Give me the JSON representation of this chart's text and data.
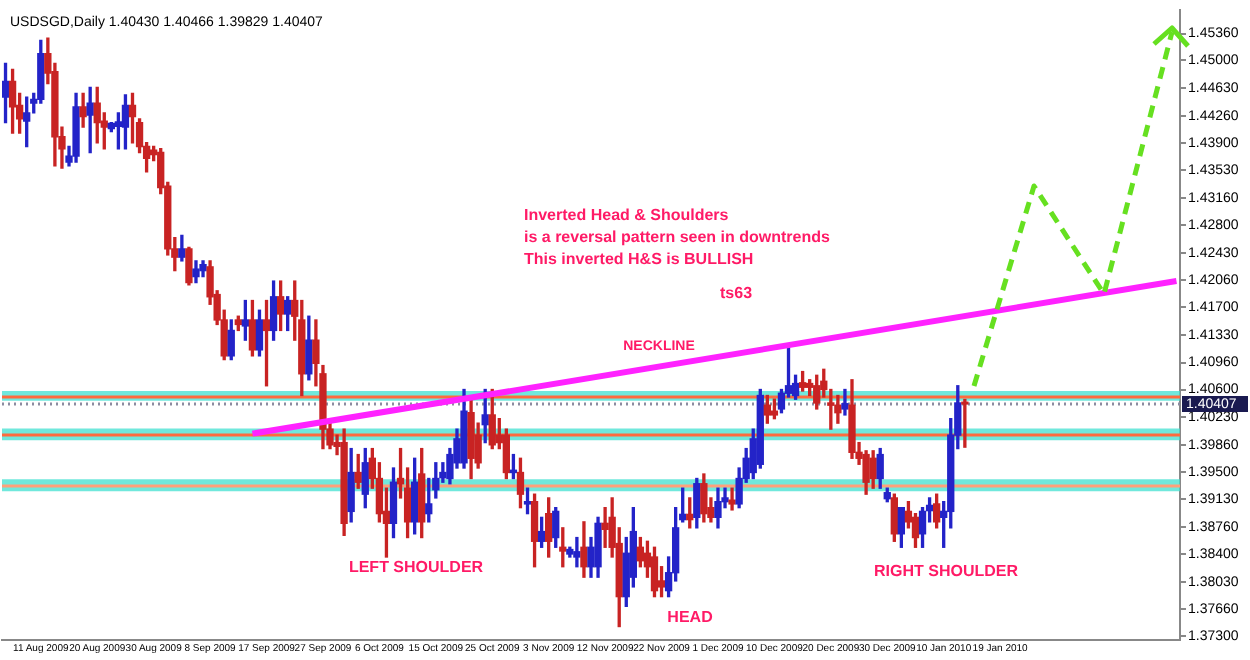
{
  "chart_data": {
    "type": "candlestick",
    "title": "USDSGD,Daily 1.40430 1.40466 1.39829 1.40407",
    "categories": [
      null,
      null,
      null,
      null,
      null,
      "11 Aug 2009",
      null,
      null,
      null,
      null,
      null,
      null,
      null,
      "20 Aug 2009",
      null,
      null,
      null,
      null,
      null,
      null,
      null,
      "30 Aug 2009",
      null,
      null,
      null,
      null,
      null,
      null,
      null,
      "8 Sep 2009",
      null,
      null,
      null,
      null,
      null,
      null,
      null,
      "17 Sep 2009",
      null,
      null,
      null,
      null,
      null,
      null,
      null,
      "27 Sep 2009",
      null,
      null,
      null,
      null,
      null,
      null,
      null,
      "6 Oct 2009",
      null,
      null,
      null,
      null,
      null,
      null,
      null,
      "15 Oct 2009",
      null,
      null,
      null,
      null,
      null,
      null,
      null,
      "25 Oct 2009",
      null,
      null,
      null,
      null,
      null,
      null,
      null,
      "3 Nov 2009",
      null,
      null,
      null,
      null,
      null,
      null,
      null,
      "12 Nov 2009",
      null,
      null,
      null,
      null,
      null,
      null,
      null,
      "22 Nov 2009",
      null,
      null,
      null,
      null,
      null,
      null,
      null,
      "1 Dec 2009",
      null,
      null,
      null,
      null,
      null,
      null,
      null,
      "10 Dec 2009",
      null,
      null,
      null,
      null,
      null,
      null,
      null,
      "20 Dec 2009",
      null,
      null,
      null,
      null,
      null,
      null,
      null,
      "30 Dec 2009",
      null,
      null,
      null,
      null,
      null,
      null,
      null,
      "10 Jan 2010",
      null,
      null,
      null,
      null,
      null,
      null,
      null,
      "19 Jan 2010",
      null,
      null,
      null,
      null,
      null,
      null,
      null,
      null,
      null,
      null,
      null,
      null,
      null,
      null,
      null,
      null,
      null,
      null,
      null,
      null,
      null,
      null,
      null,
      null,
      null
    ],
    "ohlc": [
      [
        1.4451,
        1.4496,
        1.4417,
        1.4472
      ],
      [
        1.4472,
        1.4488,
        1.4403,
        1.4438
      ],
      [
        1.444,
        1.4456,
        1.4403,
        1.4422
      ],
      [
        1.4419,
        1.4451,
        1.4385,
        1.443
      ],
      [
        1.4443,
        1.4456,
        1.443,
        1.4448
      ],
      [
        1.4448,
        1.4527,
        1.4443,
        1.4509
      ],
      [
        1.4509,
        1.453,
        1.4469,
        1.4483
      ],
      [
        1.4485,
        1.4496,
        1.4359,
        1.4398
      ],
      [
        1.4398,
        1.4411,
        1.4356,
        1.4382
      ],
      [
        1.4364,
        1.4385,
        1.4359,
        1.4372
      ],
      [
        1.4372,
        1.4456,
        1.4364,
        1.4438
      ],
      [
        1.4438,
        1.4456,
        1.4411,
        1.4425
      ],
      [
        1.4427,
        1.4464,
        1.4377,
        1.4443
      ],
      [
        1.4443,
        1.4464,
        1.439,
        1.4417
      ],
      [
        1.4419,
        1.443,
        1.4382,
        1.4411
      ],
      [
        1.4409,
        1.4417,
        1.4405,
        1.4416
      ],
      [
        1.4412,
        1.443,
        1.4382,
        1.4418
      ],
      [
        1.4411,
        1.4454,
        1.4382,
        1.444
      ],
      [
        1.444,
        1.4456,
        1.439,
        1.4425
      ],
      [
        1.4417,
        1.4422,
        1.4377,
        1.4385
      ],
      [
        1.4385,
        1.439,
        1.4351,
        1.4369
      ],
      [
        1.438,
        1.4385,
        1.4366,
        1.4374
      ],
      [
        1.4377,
        1.4382,
        1.4322,
        1.433
      ],
      [
        1.4332,
        1.4337,
        1.424,
        1.4248
      ],
      [
        1.4248,
        1.4263,
        1.4219,
        1.4237
      ],
      [
        1.4237,
        1.4266,
        1.4232,
        1.4248
      ],
      [
        1.4248,
        1.425,
        1.42,
        1.4203
      ],
      [
        1.4211,
        1.4232,
        1.4203,
        1.4221
      ],
      [
        1.4219,
        1.4232,
        1.4211,
        1.4227
      ],
      [
        1.4224,
        1.4232,
        1.4174,
        1.4184
      ],
      [
        1.4187,
        1.4192,
        1.4147,
        1.4153
      ],
      [
        1.4153,
        1.4166,
        1.41,
        1.4105
      ],
      [
        1.4105,
        1.4153,
        1.41,
        1.4139
      ],
      [
        1.4153,
        1.4158,
        1.4139,
        1.4147
      ],
      [
        1.4145,
        1.4179,
        1.4126,
        1.4153
      ],
      [
        1.4153,
        1.4179,
        1.4105,
        1.4113
      ],
      [
        1.4113,
        1.4166,
        1.4105,
        1.4153
      ],
      [
        1.4153,
        1.4179,
        1.4065,
        1.4139
      ],
      [
        1.4139,
        1.4205,
        1.4126,
        1.4184
      ],
      [
        1.4184,
        1.4205,
        1.4139,
        1.4161
      ],
      [
        1.4161,
        1.4184,
        1.4139,
        1.4179
      ],
      [
        1.4179,
        1.4205,
        1.4126,
        1.4158
      ],
      [
        1.4153,
        1.4179,
        1.4052,
        1.4081
      ],
      [
        1.4081,
        1.4158,
        1.4073,
        1.4126
      ],
      [
        1.4126,
        1.4153,
        1.4065,
        1.4095
      ],
      [
        1.4081,
        1.4092,
        1.3981,
        1.4007
      ],
      [
        1.4007,
        1.4015,
        1.3981,
        1.3986
      ],
      [
        1.3989,
        1.3999,
        1.3973,
        1.3984
      ],
      [
        1.3989,
        1.4007,
        1.3865,
        1.3881
      ],
      [
        1.3897,
        1.3981,
        1.3883,
        1.3949
      ],
      [
        1.3949,
        1.3973,
        1.3928,
        1.3936
      ],
      [
        1.392,
        1.3981,
        1.3902,
        1.3962
      ],
      [
        1.3968,
        1.3981,
        1.3928,
        1.3941
      ],
      [
        1.3941,
        1.3962,
        1.3883,
        1.3894
      ],
      [
        1.3897,
        1.3928,
        1.3836,
        1.3881
      ],
      [
        1.3881,
        1.3955,
        1.3862,
        1.3936
      ],
      [
        1.3941,
        1.3981,
        1.3915,
        1.3934
      ],
      [
        1.3928,
        1.3955,
        1.3862,
        1.3883
      ],
      [
        1.3883,
        1.3968,
        1.3867,
        1.3936
      ],
      [
        1.3947,
        1.3981,
        1.3862,
        1.3883
      ],
      [
        1.3894,
        1.3941,
        1.3883,
        1.3907
      ],
      [
        1.3926,
        1.3962,
        1.3915,
        1.3941
      ],
      [
        1.3942,
        1.3962,
        1.3936,
        1.3949
      ],
      [
        1.3941,
        1.3981,
        1.3934,
        1.3973
      ],
      [
        1.3962,
        1.4007,
        1.3955,
        1.3994
      ],
      [
        1.3962,
        1.406,
        1.3955,
        1.4031
      ],
      [
        1.4029,
        1.4047,
        1.3941,
        1.3968
      ],
      [
        1.3999,
        1.4015,
        1.3955,
        1.3962
      ],
      [
        1.4013,
        1.406,
        1.3989,
        1.4026
      ],
      [
        1.4026,
        1.406,
        1.3981,
        1.3986
      ],
      [
        1.3999,
        1.4021,
        1.3981,
        1.3989
      ],
      [
        1.3999,
        1.4007,
        1.3941,
        1.3949
      ],
      [
        1.3949,
        1.3973,
        1.3941,
        1.3952
      ],
      [
        1.3949,
        1.3968,
        1.3902,
        1.392
      ],
      [
        1.3907,
        1.3928,
        1.3894,
        1.391
      ],
      [
        1.391,
        1.392,
        1.3823,
        1.3857
      ],
      [
        1.3857,
        1.3889,
        1.3849,
        1.387
      ],
      [
        1.3894,
        1.3915,
        1.3836,
        1.3857
      ],
      [
        1.3862,
        1.3902,
        1.3849,
        1.3897
      ],
      [
        1.3849,
        1.3875,
        1.3823,
        1.3844
      ],
      [
        1.384,
        1.3849,
        1.3836,
        1.3846
      ],
      [
        1.3836,
        1.3862,
        1.3823,
        1.3843
      ],
      [
        1.3849,
        1.3883,
        1.3809,
        1.3823
      ],
      [
        1.3823,
        1.3862,
        1.3809,
        1.3849
      ],
      [
        1.3823,
        1.3889,
        1.3809,
        1.3881
      ],
      [
        1.3881,
        1.3902,
        1.3849,
        1.3873
      ],
      [
        1.3889,
        1.3915,
        1.3836,
        1.3849
      ],
      [
        1.3854,
        1.3875,
        1.3743,
        1.3783
      ],
      [
        1.3783,
        1.3862,
        1.377,
        1.3841
      ],
      [
        1.3809,
        1.3902,
        1.3796,
        1.387
      ],
      [
        1.3849,
        1.3862,
        1.3823,
        1.3831
      ],
      [
        1.3841,
        1.3857,
        1.3809,
        1.3823
      ],
      [
        1.3836,
        1.3849,
        1.3783,
        1.3791
      ],
      [
        1.3804,
        1.3823,
        1.3783,
        1.3796
      ],
      [
        1.3791,
        1.3836,
        1.3783,
        1.3815
      ],
      [
        1.3815,
        1.3902,
        1.3804,
        1.3875
      ],
      [
        1.3886,
        1.3928,
        1.3883,
        1.3893
      ],
      [
        1.3893,
        1.3915,
        1.3875,
        1.3886
      ],
      [
        1.3889,
        1.3941,
        1.3875,
        1.3934
      ],
      [
        1.3934,
        1.3947,
        1.3883,
        1.3894
      ],
      [
        1.3902,
        1.3915,
        1.3883,
        1.3889
      ],
      [
        1.3889,
        1.3928,
        1.3875,
        1.391
      ],
      [
        1.391,
        1.3928,
        1.3902,
        1.3915
      ],
      [
        1.3912,
        1.3928,
        1.3899,
        1.3907
      ],
      [
        1.3907,
        1.3955,
        1.3902,
        1.3941
      ],
      [
        1.3941,
        1.3981,
        1.3936,
        1.3968
      ],
      [
        1.3949,
        1.4007,
        1.3941,
        1.3994
      ],
      [
        1.396,
        1.406,
        1.3955,
        1.4052
      ],
      [
        1.4039,
        1.4052,
        1.4015,
        1.4026
      ],
      [
        1.4031,
        1.4047,
        1.4021,
        1.4026
      ],
      [
        1.4034,
        1.406,
        1.4029,
        1.4055
      ],
      [
        1.4055,
        1.4121,
        1.405,
        1.4065
      ],
      [
        1.4052,
        1.4079,
        1.4047,
        1.4068
      ],
      [
        1.4069,
        1.4084,
        1.4058,
        1.4063
      ],
      [
        1.4068,
        1.4073,
        1.4052,
        1.4063
      ],
      [
        1.4065,
        1.4079,
        1.4034,
        1.4042
      ],
      [
        1.4071,
        1.4087,
        1.405,
        1.406
      ],
      [
        1.4042,
        1.406,
        1.4007,
        1.4039
      ],
      [
        1.4039,
        1.4052,
        1.4015,
        1.4029
      ],
      [
        1.4034,
        1.406,
        1.4026,
        1.4041
      ],
      [
        1.4039,
        1.4073,
        1.3968,
        1.3976
      ],
      [
        1.3976,
        1.3989,
        1.396,
        1.3968
      ],
      [
        1.3973,
        1.3978,
        1.392,
        1.3936
      ],
      [
        1.3968,
        1.3978,
        1.3928,
        1.3941
      ],
      [
        1.3941,
        1.3981,
        1.3928,
        1.3973
      ],
      [
        1.3914,
        1.3928,
        1.391,
        1.3922
      ],
      [
        1.3915,
        1.392,
        1.3857,
        1.3867
      ],
      [
        1.3867,
        1.3902,
        1.3849,
        1.3902
      ],
      [
        1.3897,
        1.391,
        1.3875,
        1.3883
      ],
      [
        1.3889,
        1.3894,
        1.3849,
        1.3862
      ],
      [
        1.3867,
        1.3902,
        1.3849,
        1.3897
      ],
      [
        1.3898,
        1.3915,
        1.3883,
        1.3905
      ],
      [
        1.3907,
        1.392,
        1.3875,
        1.3883
      ],
      [
        1.3889,
        1.391,
        1.3849,
        1.3897
      ],
      [
        1.3897,
        1.4021,
        1.3875,
        1.3999
      ],
      [
        1.3999,
        1.4065,
        1.3981,
        1.4042
      ],
      [
        1.4043,
        1.40466,
        1.39829,
        1.40407
      ],
      null,
      null,
      null,
      null,
      null,
      null,
      null,
      null,
      null,
      null,
      null,
      null,
      null,
      null,
      null,
      null,
      null,
      null,
      null,
      null,
      null,
      null,
      null,
      null,
      null,
      null,
      null,
      null,
      null,
      null
    ],
    "colors": [
      "#2323c8",
      "#c82323",
      "#c82323",
      "#2323c8",
      "#2323c8",
      "#2323c8",
      "#c82323",
      "#c82323",
      "#c82323",
      "#2323c8",
      "#2323c8",
      "#c82323",
      "#2323c8",
      "#c82323",
      "#c82323",
      "#2323c8",
      "#2323c8",
      "#2323c8",
      "#c82323",
      "#c82323",
      "#c82323",
      "#c82323",
      "#c82323",
      "#c82323",
      "#c82323",
      "#2323c8",
      "#c82323",
      "#2323c8",
      "#2323c8",
      "#c82323",
      "#c82323",
      "#c82323",
      "#2323c8",
      "#c82323",
      "#2323c8",
      "#c82323",
      "#2323c8",
      "#c82323",
      "#2323c8",
      "#c82323",
      "#2323c8",
      "#c82323",
      "#c82323",
      "#2323c8",
      "#c82323",
      "#c82323",
      "#c82323",
      "#c82323",
      "#c82323",
      "#2323c8",
      "#c82323",
      "#2323c8",
      "#c82323",
      "#c82323",
      "#c82323",
      "#2323c8",
      "#c82323",
      "#c82323",
      "#2323c8",
      "#c82323",
      "#2323c8",
      "#2323c8",
      "#2323c8",
      "#2323c8",
      "#2323c8",
      "#2323c8",
      "#c82323",
      "#c82323",
      "#2323c8",
      "#c82323",
      "#c82323",
      "#c82323",
      "#2323c8",
      "#c82323",
      "#2323c8",
      "#c82323",
      "#2323c8",
      "#c82323",
      "#2323c8",
      "#c82323",
      "#2323c8",
      "#2323c8",
      "#c82323",
      "#2323c8",
      "#2323c8",
      "#c82323",
      "#c82323",
      "#c82323",
      "#2323c8",
      "#2323c8",
      "#c82323",
      "#c82323",
      "#c82323",
      "#c82323",
      "#2323c8",
      "#2323c8",
      "#2323c8",
      "#c82323",
      "#2323c8",
      "#c82323",
      "#c82323",
      "#2323c8",
      "#2323c8",
      "#c82323",
      "#2323c8",
      "#2323c8",
      "#2323c8",
      "#2323c8",
      "#c82323",
      "#c82323",
      "#2323c8",
      "#2323c8",
      "#2323c8",
      "#c82323",
      "#c82323",
      "#c82323",
      "#c82323",
      "#c82323",
      "#c82323",
      "#2323c8",
      "#c82323",
      "#c82323",
      "#c82323",
      "#c82323",
      "#2323c8",
      "#2323c8",
      "#c82323",
      "#2323c8",
      "#c82323",
      "#c82323",
      "#2323c8",
      "#2323c8",
      "#c82323",
      "#2323c8",
      "#2323c8",
      "#2323c8",
      "#c82323",
      null,
      null,
      null,
      null,
      null,
      null,
      null,
      null,
      null,
      null,
      null,
      null,
      null,
      null,
      null,
      null,
      null,
      null,
      null,
      null,
      null,
      null,
      null,
      null,
      null,
      null,
      null,
      null,
      null,
      null
    ],
    "series": [
      {
        "type": "line",
        "name": "NECKLINE",
        "color": "#ff22ff",
        "values": [
          null,
          null,
          null,
          null,
          null,
          null,
          null,
          null,
          null,
          null,
          null,
          null,
          null,
          null,
          null,
          null,
          null,
          null,
          null,
          null,
          null,
          null,
          null,
          null,
          null,
          null,
          null,
          null,
          null,
          null,
          null,
          null,
          null,
          null,
          null,
          1.4001,
          null,
          null,
          null,
          null,
          null,
          null,
          null,
          null,
          null,
          null,
          null,
          null,
          null,
          null,
          null,
          null,
          null,
          null,
          null,
          null,
          null,
          null,
          null,
          null,
          null,
          null,
          null,
          null,
          null,
          null,
          null,
          null,
          null,
          null,
          null,
          null,
          null,
          null,
          null,
          null,
          null,
          null,
          null,
          null,
          null,
          null,
          null,
          null,
          null,
          null,
          null,
          null,
          null,
          null,
          null,
          null,
          null,
          null,
          null,
          null,
          null,
          null,
          null,
          null,
          null,
          null,
          null,
          null,
          null,
          null,
          null,
          null,
          null,
          null,
          null,
          null,
          null,
          null,
          null,
          null,
          null,
          null,
          null,
          null,
          null,
          null,
          null,
          null,
          null,
          null,
          null,
          null,
          null,
          null,
          null,
          null,
          null,
          null,
          null,
          null,
          null,
          null,
          null,
          null,
          null,
          null,
          null,
          null,
          null,
          null,
          null,
          null,
          null,
          null,
          null,
          null,
          null,
          null,
          null,
          null,
          null,
          null,
          null,
          null,
          null,
          null,
          null,
          null,
          null,
          null,
          1.4205
        ]
      }
    ],
    "ylim": [
      1.3725,
      1.4567
    ],
    "yticks": [
      {
        "value": 1.373,
        "label": "1.37300"
      },
      {
        "value": 1.3766,
        "label": "1.37660"
      },
      {
        "value": 1.3803,
        "label": "1.38030"
      },
      {
        "value": 1.384,
        "label": "1.38400"
      },
      {
        "value": 1.3876,
        "label": "1.38760"
      },
      {
        "value": 1.3913,
        "label": "1.39130"
      },
      {
        "value": 1.395,
        "label": "1.39500"
      },
      {
        "value": 1.3986,
        "label": "1.39860"
      },
      {
        "value": 1.4023,
        "label": "1.40230"
      },
      {
        "value": 1.406,
        "label": "1.40600"
      },
      {
        "value": 1.4096,
        "label": "1.40960"
      },
      {
        "value": 1.4133,
        "label": "1.41330"
      },
      {
        "value": 1.417,
        "label": "1.41700"
      },
      {
        "value": 1.4206,
        "label": "1.42060"
      },
      {
        "value": 1.4243,
        "label": "1.42430"
      },
      {
        "value": 1.428,
        "label": "1.42800"
      },
      {
        "value": 1.4316,
        "label": "1.43160"
      },
      {
        "value": 1.4353,
        "label": "1.43530"
      },
      {
        "value": 1.439,
        "label": "1.43900"
      },
      {
        "value": 1.4426,
        "label": "1.44260"
      },
      {
        "value": 1.4463,
        "label": "1.44630"
      },
      {
        "value": 1.45,
        "label": "1.45000"
      },
      {
        "value": 1.4536,
        "label": "1.45360"
      }
    ],
    "bands": [
      {
        "axis": "y",
        "from": 1.4045,
        "to": 1.4058,
        "color": "#40e0d0"
      },
      {
        "axis": "y",
        "from": 1.3992,
        "to": 1.4008,
        "color": "#40e0d0"
      },
      {
        "axis": "y",
        "from": 1.3924,
        "to": 1.394,
        "color": "#40e0d0"
      }
    ],
    "ref_lines": [
      {
        "axis": "y",
        "value": 1.405,
        "color": "#ff6a3d"
      },
      {
        "axis": "y",
        "value": 1.3999,
        "color": "#ff6a3d"
      },
      {
        "axis": "y",
        "value": 1.3931,
        "color": "#ffa07a"
      },
      {
        "axis": "y",
        "value": 1.40407,
        "color": "#8c8ca0",
        "line_style": "dotted",
        "label": "1.40407"
      }
    ],
    "annotations": [
      "Inverted Head & Shoulders",
      "is a reversal pattern seen in downtrends",
      "This inverted H&S is BULLISH",
      "ts63",
      "LEFT SHOULDER",
      "HEAD",
      "RIGHT SHOULDER"
    ]
  }
}
